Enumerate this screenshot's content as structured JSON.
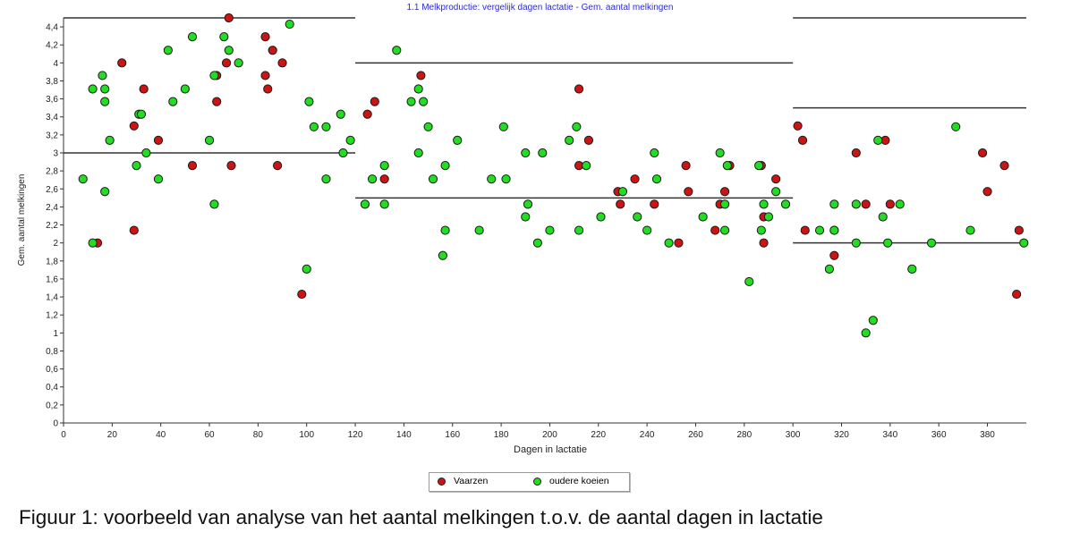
{
  "caption": "Figuur 1: voorbeeld van analyse van het aantal melkingen t.o.v. de aantal dagen in lactatie",
  "colors": {
    "vaarzen": "#cc1414",
    "oudere_koeien": "#22dd22",
    "title": "#2b2bd6",
    "reference": "#333333"
  },
  "chart_data": {
    "type": "scatter",
    "title": "1.1 Melkproductie: vergelijk dagen lactatie - Gem. aantal melkingen",
    "xlabel": "Dagen in lactatie",
    "ylabel": "Gem. aantal melkingen",
    "xlim": [
      0,
      396
    ],
    "ylim": [
      0,
      4.5
    ],
    "x_ticks": [
      "0",
      "20",
      "40",
      "60",
      "80",
      "100",
      "120",
      "140",
      "160",
      "180",
      "200",
      "220",
      "240",
      "260",
      "280",
      "300",
      "320",
      "340",
      "360",
      "380"
    ],
    "y_ticks": [
      "0",
      "0,2",
      "0,4",
      "0,6",
      "0,8",
      "1",
      "1,2",
      "1,4",
      "1,6",
      "1,8",
      "2",
      "2,2",
      "2,4",
      "2,6",
      "2,8",
      "3",
      "3,2",
      "3,4",
      "3,6",
      "3,8",
      "4",
      "4,2",
      "4,4"
    ],
    "grid": false,
    "legend_position": "bottom-center",
    "reference_lines": [
      {
        "x": [
          0,
          120
        ],
        "y": 4.5
      },
      {
        "x": [
          0,
          120
        ],
        "y": 3.0
      },
      {
        "x": [
          120,
          300
        ],
        "y": 4.0
      },
      {
        "x": [
          120,
          300
        ],
        "y": 2.5
      },
      {
        "x": [
          300,
          396
        ],
        "y": 4.5
      },
      {
        "x": [
          300,
          396
        ],
        "y": 3.5
      },
      {
        "x": [
          300,
          396
        ],
        "y": 2.0
      }
    ],
    "series": [
      {
        "name": "Vaarzen",
        "points": [
          [
            14,
            2.0
          ],
          [
            24,
            4.0
          ],
          [
            29,
            3.3
          ],
          [
            29,
            2.14
          ],
          [
            33,
            3.71
          ],
          [
            39,
            3.14
          ],
          [
            53,
            2.86
          ],
          [
            63,
            3.86
          ],
          [
            63,
            3.57
          ],
          [
            67,
            4.0
          ],
          [
            68,
            4.5
          ],
          [
            69,
            2.86
          ],
          [
            83,
            4.29
          ],
          [
            83,
            3.86
          ],
          [
            84,
            3.71
          ],
          [
            86,
            4.14
          ],
          [
            88,
            2.86
          ],
          [
            90,
            4.0
          ],
          [
            98,
            1.43
          ],
          [
            125,
            3.43
          ],
          [
            128,
            3.57
          ],
          [
            132,
            2.71
          ],
          [
            147,
            3.86
          ],
          [
            212,
            3.71
          ],
          [
            212,
            2.86
          ],
          [
            216,
            3.14
          ],
          [
            228,
            2.57
          ],
          [
            229,
            2.43
          ],
          [
            235,
            2.71
          ],
          [
            243,
            2.43
          ],
          [
            253,
            2.0
          ],
          [
            256,
            2.86
          ],
          [
            257,
            2.57
          ],
          [
            268,
            2.14
          ],
          [
            270,
            2.43
          ],
          [
            272,
            2.57
          ],
          [
            274,
            2.86
          ],
          [
            287,
            2.86
          ],
          [
            288,
            2.29
          ],
          [
            288,
            2.0
          ],
          [
            293,
            2.71
          ],
          [
            302,
            3.3
          ],
          [
            304,
            3.14
          ],
          [
            305,
            2.14
          ],
          [
            317,
            1.86
          ],
          [
            326,
            3.0
          ],
          [
            330,
            2.43
          ],
          [
            338,
            3.14
          ],
          [
            340,
            2.43
          ],
          [
            378,
            3.0
          ],
          [
            380,
            2.57
          ],
          [
            387,
            2.86
          ],
          [
            392,
            1.43
          ],
          [
            393,
            2.14
          ]
        ]
      },
      {
        "name": "oudere koeien",
        "points": [
          [
            8,
            2.71
          ],
          [
            12,
            3.71
          ],
          [
            12,
            2.0
          ],
          [
            16,
            3.86
          ],
          [
            17,
            3.71
          ],
          [
            17,
            3.57
          ],
          [
            17,
            2.57
          ],
          [
            19,
            3.14
          ],
          [
            30,
            2.86
          ],
          [
            31,
            3.43
          ],
          [
            32,
            3.43
          ],
          [
            34,
            3.0
          ],
          [
            39,
            2.71
          ],
          [
            43,
            4.14
          ],
          [
            45,
            3.57
          ],
          [
            50,
            3.71
          ],
          [
            53,
            4.29
          ],
          [
            60,
            3.14
          ],
          [
            62,
            3.86
          ],
          [
            62,
            2.43
          ],
          [
            66,
            4.29
          ],
          [
            68,
            4.14
          ],
          [
            72,
            4.0
          ],
          [
            93,
            4.43
          ],
          [
            100,
            1.71
          ],
          [
            101,
            3.57
          ],
          [
            103,
            3.29
          ],
          [
            108,
            3.29
          ],
          [
            108,
            2.71
          ],
          [
            114,
            3.43
          ],
          [
            115,
            3.0
          ],
          [
            118,
            3.14
          ],
          [
            124,
            2.43
          ],
          [
            127,
            2.71
          ],
          [
            132,
            2.86
          ],
          [
            132,
            2.43
          ],
          [
            137,
            4.14
          ],
          [
            143,
            3.57
          ],
          [
            146,
            3.71
          ],
          [
            146,
            3.0
          ],
          [
            148,
            3.57
          ],
          [
            150,
            3.29
          ],
          [
            152,
            2.71
          ],
          [
            157,
            2.14
          ],
          [
            157,
            2.86
          ],
          [
            156,
            1.86
          ],
          [
            162,
            3.14
          ],
          [
            171,
            2.14
          ],
          [
            176,
            2.71
          ],
          [
            181,
            3.29
          ],
          [
            182,
            2.71
          ],
          [
            190,
            3.0
          ],
          [
            190,
            2.29
          ],
          [
            191,
            2.43
          ],
          [
            195,
            2.0
          ],
          [
            197,
            3.0
          ],
          [
            200,
            2.14
          ],
          [
            208,
            3.14
          ],
          [
            211,
            3.29
          ],
          [
            212,
            2.14
          ],
          [
            215,
            2.86
          ],
          [
            221,
            2.29
          ],
          [
            230,
            2.57
          ],
          [
            236,
            2.29
          ],
          [
            240,
            2.14
          ],
          [
            243,
            3.0
          ],
          [
            244,
            2.71
          ],
          [
            249,
            2.0
          ],
          [
            263,
            2.29
          ],
          [
            270,
            3.0
          ],
          [
            272,
            2.43
          ],
          [
            272,
            2.14
          ],
          [
            273,
            2.86
          ],
          [
            282,
            1.57
          ],
          [
            286,
            2.86
          ],
          [
            287,
            2.14
          ],
          [
            288,
            2.43
          ],
          [
            290,
            2.29
          ],
          [
            293,
            2.57
          ],
          [
            297,
            2.43
          ],
          [
            311,
            2.14
          ],
          [
            315,
            1.71
          ],
          [
            317,
            2.43
          ],
          [
            317,
            2.14
          ],
          [
            317,
            2.14
          ],
          [
            326,
            2.43
          ],
          [
            326,
            2.0
          ],
          [
            330,
            1.0
          ],
          [
            333,
            1.14
          ],
          [
            335,
            3.14
          ],
          [
            337,
            2.29
          ],
          [
            339,
            2.0
          ],
          [
            344,
            2.43
          ],
          [
            349,
            1.71
          ],
          [
            357,
            2.0
          ],
          [
            367,
            3.29
          ],
          [
            373,
            2.14
          ],
          [
            395,
            2.0
          ]
        ]
      }
    ]
  }
}
